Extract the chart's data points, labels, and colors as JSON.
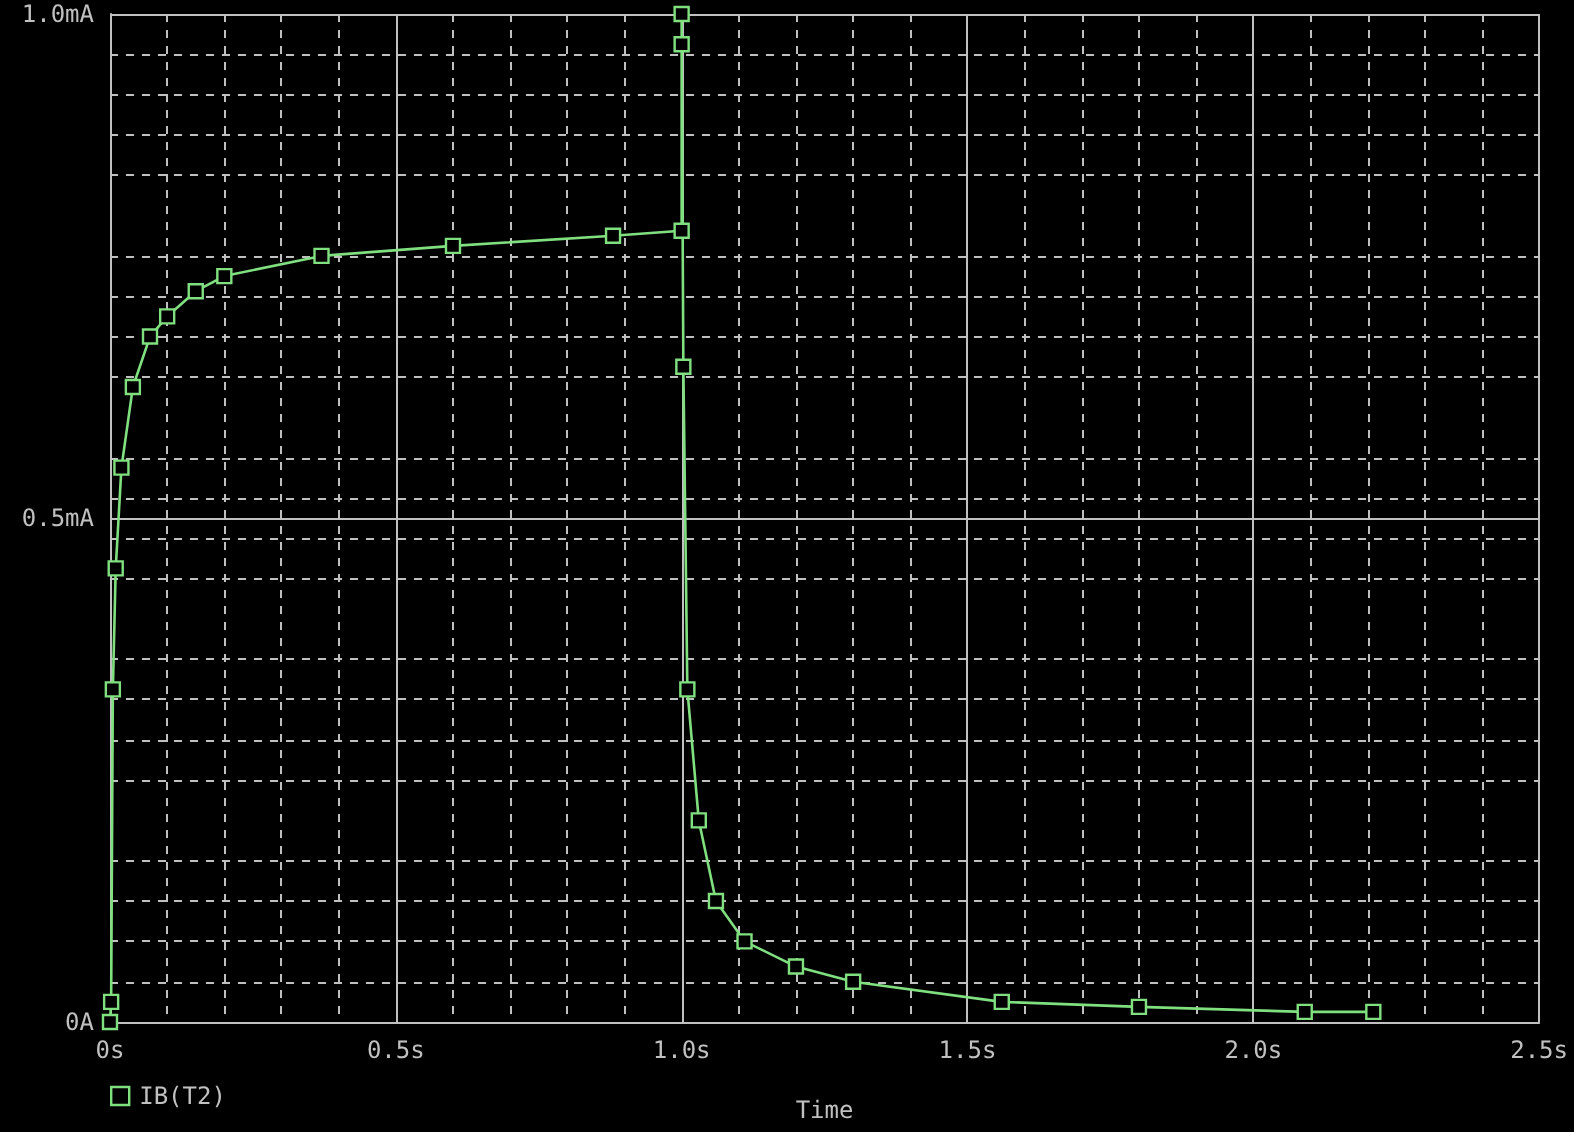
{
  "chart_data": {
    "type": "line",
    "xlabel": "Time",
    "xlim": [
      0,
      2.5
    ],
    "xticks": [
      {
        "value": 0,
        "label": "0s"
      },
      {
        "value": 0.5,
        "label": "0.5s"
      },
      {
        "value": 1,
        "label": "1.0s"
      },
      {
        "value": 1.5,
        "label": "1.5s"
      },
      {
        "value": 2,
        "label": "2.0s"
      },
      {
        "value": 2.5,
        "label": "2.5s"
      }
    ],
    "ylim": [
      0,
      1
    ],
    "yticks": [
      {
        "value": 0,
        "label": "0A"
      },
      {
        "value": 0.5,
        "label": "0.5mA"
      },
      {
        "value": 1,
        "label": "1.0mA"
      }
    ],
    "x": [
      0,
      0.002,
      0.005,
      0.01,
      0.02,
      0.04,
      0.07,
      0.1,
      0.15,
      0.2,
      0.37,
      0.6,
      0.88,
      1.0,
      1.0,
      1.0,
      1.003,
      1.01,
      1.03,
      1.06,
      1.11,
      1.2,
      1.3,
      1.56,
      1.8,
      2.09,
      2.21
    ],
    "series": [
      {
        "name": "IB(T2)",
        "color": "#80e080",
        "values": [
          0,
          0.02,
          0.33,
          0.45,
          0.55,
          0.63,
          0.68,
          0.7,
          0.725,
          0.74,
          0.76,
          0.77,
          0.78,
          0.785,
          1.0,
          0.97,
          0.65,
          0.33,
          0.2,
          0.12,
          0.08,
          0.055,
          0.04,
          0.02,
          0.015,
          0.01,
          0.01
        ]
      }
    ],
    "grid": true,
    "legend": "bottom left",
    "marker": "square",
    "line_style": "solid"
  }
}
